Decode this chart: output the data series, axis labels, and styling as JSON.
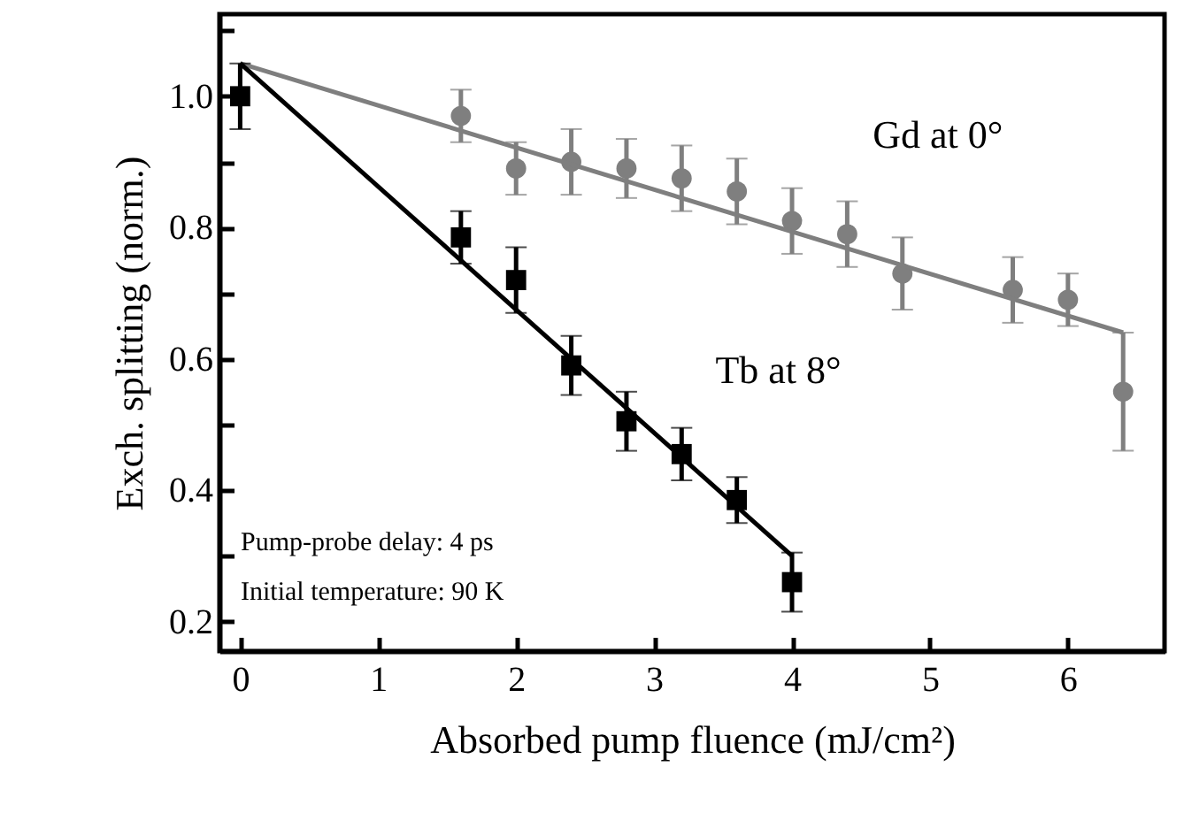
{
  "chart_data": {
    "type": "scatter",
    "xlabel": "Absorbed pump fluence (mJ/cm²)",
    "ylabel": "Exch. splitting (norm.)",
    "xlim": [
      -0.15,
      6.7
    ],
    "xticks": [
      0,
      1,
      2,
      3,
      4,
      5,
      6
    ],
    "ylim": [
      0.155,
      1.125
    ],
    "yticks": [
      0.2,
      {
        "value": 0.3,
        "label": null
      },
      0.4,
      {
        "value": 0.5,
        "label": null
      },
      0.6,
      {
        "value": 0.7,
        "label": null
      },
      0.8,
      {
        "value": 0.9,
        "label": null
      },
      {
        "value": 1,
        "label": "1.0"
      },
      {
        "value": 1.1,
        "label": null
      }
    ],
    "grid": false,
    "series": [
      {
        "name": "Gd at 0°",
        "marker": "circle",
        "color": "#7f7f7f",
        "x": [
          1.6,
          2,
          2.4,
          2.8,
          3.2,
          3.6,
          4,
          4.4,
          4.8,
          5.6,
          6,
          6.4
        ],
        "values": [
          0.97,
          0.89,
          0.9,
          0.89,
          0.875,
          0.855,
          0.81,
          0.79,
          0.73,
          0.705,
          0.69,
          0.55
        ],
        "errors": [
          0.04,
          0.04,
          0.05,
          0.045,
          0.05,
          0.05,
          0.05,
          0.05,
          0.055,
          0.05,
          0.04,
          0.09
        ]
      },
      {
        "type": "line",
        "marker": "none",
        "color": "#7f7f7f",
        "x": [
          0,
          6.4
        ],
        "values": [
          1.05,
          0.64
        ]
      },
      {
        "type": "line",
        "marker": "none",
        "color": "#000000",
        "x": [
          0,
          4
        ],
        "values": [
          1.05,
          0.3
        ]
      },
      {
        "name": "Tb at 8°",
        "marker": "square",
        "color": "#000000",
        "x": [
          0,
          1.6,
          2,
          2.4,
          2.8,
          3.2,
          3.6,
          4
        ],
        "values": [
          1.0,
          0.785,
          0.72,
          0.59,
          0.505,
          0.455,
          0.385,
          0.26
        ],
        "errors": [
          0.05,
          0.04,
          0.05,
          0.045,
          0.045,
          0.04,
          0.035,
          0.045
        ]
      }
    ],
    "annotations": [
      "Pump-probe delay: 4 ps",
      "Initial temperature: 90 K"
    ]
  }
}
